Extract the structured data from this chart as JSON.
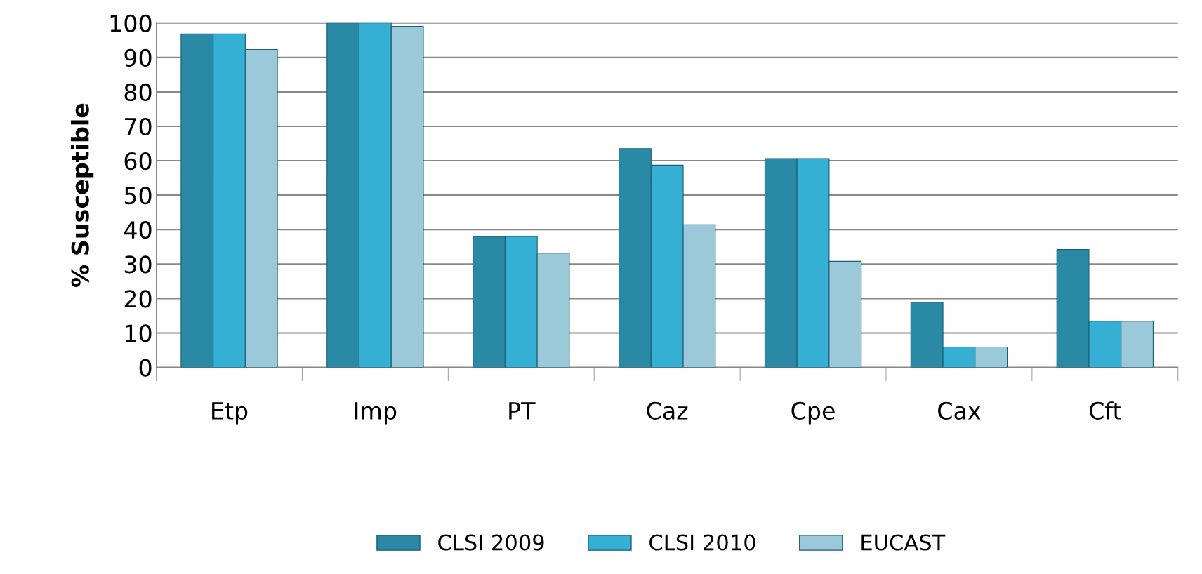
{
  "chart_data": {
    "type": "bar",
    "ylabel": "% Susceptible",
    "categories": [
      "Etp",
      "Imp",
      "PT",
      "Caz",
      "Cpe",
      "Cax",
      "Cft"
    ],
    "series": [
      {
        "name": "CLSI 2009",
        "color": "#2a89a5",
        "values": [
          96.8,
          100,
          38,
          63.5,
          60.6,
          18.9,
          34.2
        ]
      },
      {
        "name": "CLSI 2010",
        "color": "#35b0d4",
        "values": [
          96.8,
          100,
          38,
          58.7,
          60.6,
          5.9,
          13.4
        ]
      },
      {
        "name": "EUCAST",
        "color": "#9cc9da",
        "values": [
          92.3,
          99,
          33.2,
          41.4,
          30.8,
          5.9,
          13.4
        ]
      }
    ],
    "ylim": [
      0,
      100
    ],
    "yticks": [
      0,
      10,
      20,
      30,
      40,
      50,
      60,
      70,
      80,
      90,
      100
    ],
    "grid": "y",
    "legend": "bottom"
  }
}
